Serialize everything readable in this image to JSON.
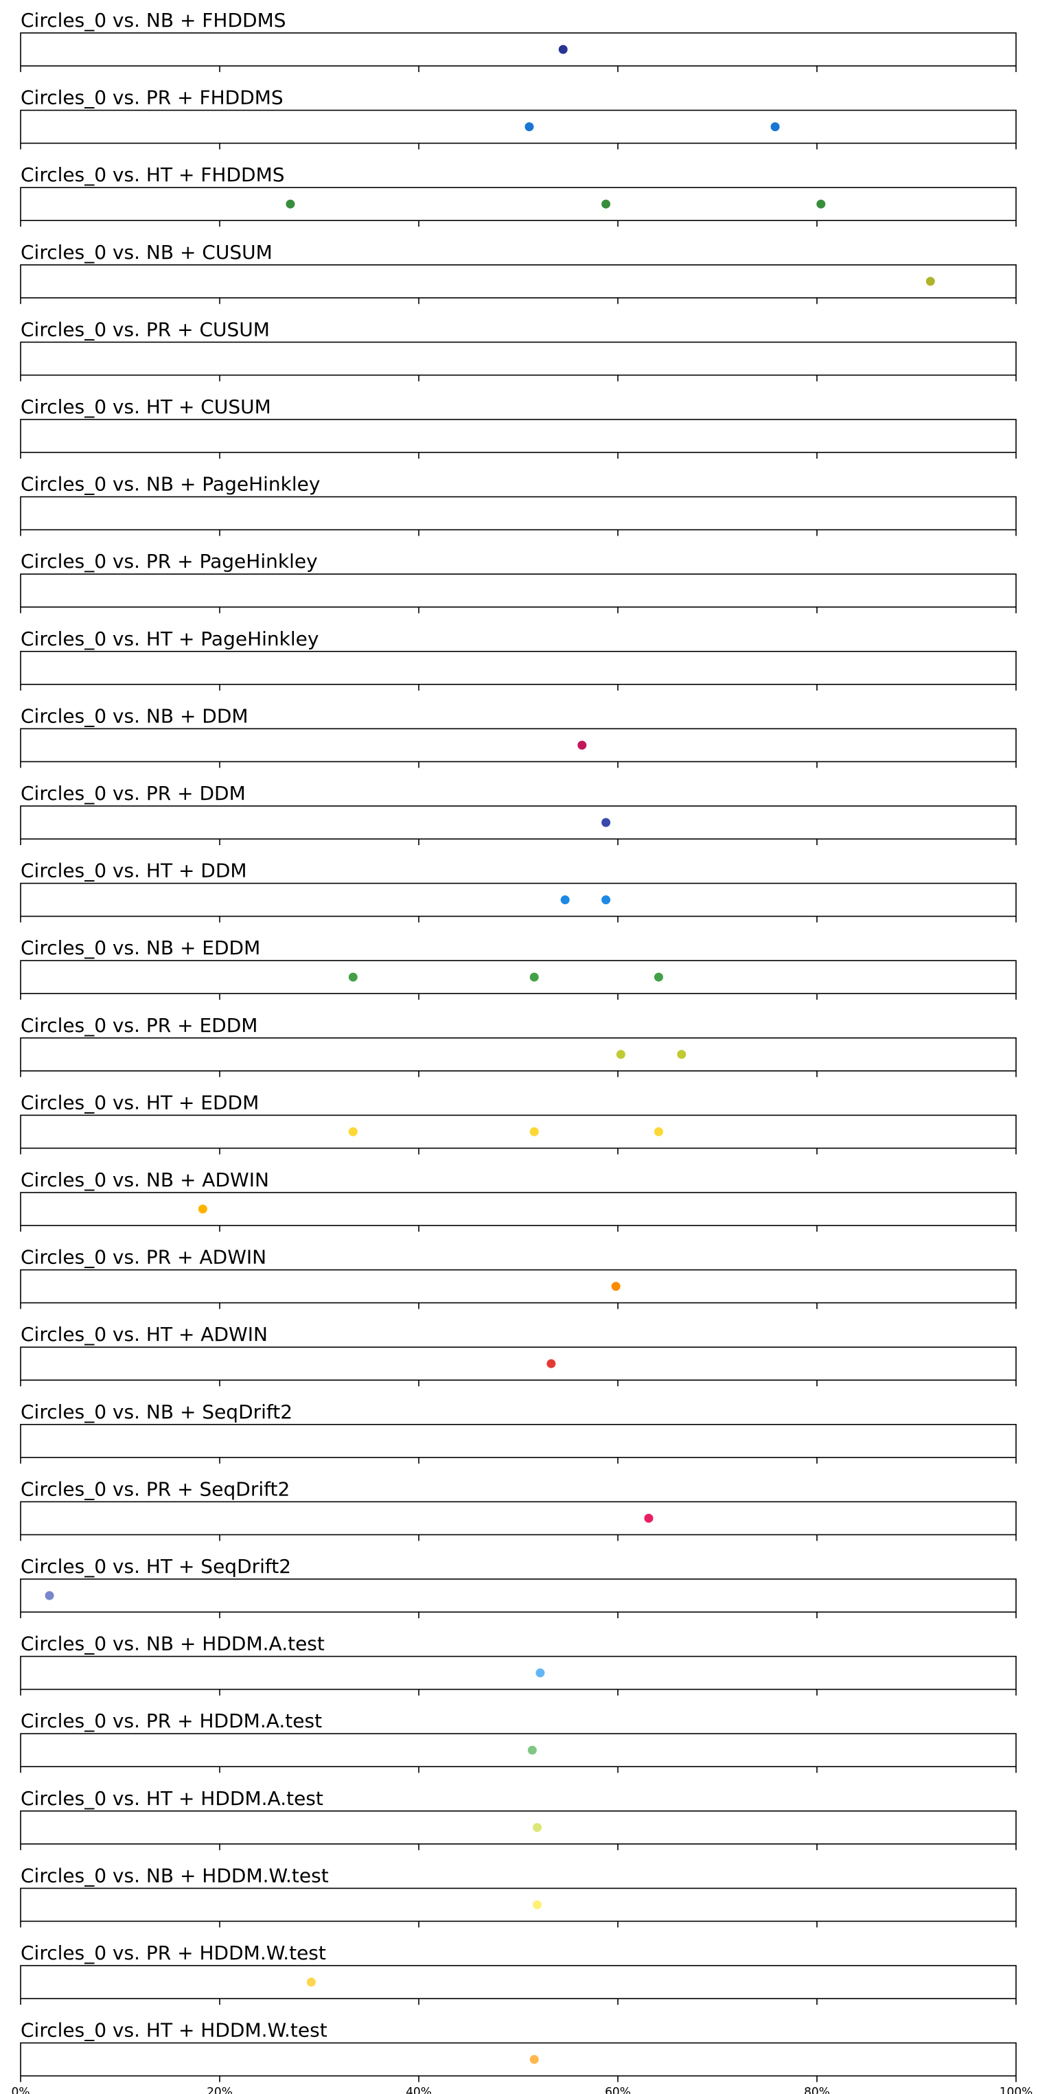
{
  "chart_data": {
    "type": "scatter",
    "x_axis": {
      "xlim": [
        0,
        100
      ],
      "ticks": [
        0,
        20,
        40,
        60,
        80,
        100
      ],
      "tick_labels": [
        "0%",
        "20%",
        "40%",
        "60%",
        "80%",
        "100%"
      ],
      "grid": false
    },
    "panels": [
      {
        "title": "Circles_0 vs. NB + FHDDMS",
        "color": "#283593",
        "points": [
          54.5
        ]
      },
      {
        "title": "Circles_0 vs. PR + FHDDMS",
        "color": "#1976d2",
        "points": [
          51.1,
          75.8
        ]
      },
      {
        "title": "Circles_0 vs. HT + FHDDMS",
        "color": "#388e3c",
        "points": [
          27.1,
          58.8,
          80.4
        ]
      },
      {
        "title": "Circles_0 vs. NB + CUSUM",
        "color": "#afb42b",
        "points": [
          91.4
        ]
      },
      {
        "title": "Circles_0 vs. PR + CUSUM",
        "color": "#000000",
        "points": []
      },
      {
        "title": "Circles_0 vs. HT + CUSUM",
        "color": "#000000",
        "points": []
      },
      {
        "title": "Circles_0 vs. NB + PageHinkley",
        "color": "#000000",
        "points": []
      },
      {
        "title": "Circles_0 vs. PR + PageHinkley",
        "color": "#000000",
        "points": []
      },
      {
        "title": "Circles_0 vs. HT + PageHinkley",
        "color": "#000000",
        "points": []
      },
      {
        "title": "Circles_0 vs. NB + DDM",
        "color": "#c2185b",
        "points": [
          56.4
        ]
      },
      {
        "title": "Circles_0 vs. PR + DDM",
        "color": "#3949ab",
        "points": [
          58.8
        ]
      },
      {
        "title": "Circles_0 vs. HT + DDM",
        "color": "#1e88e5",
        "points": [
          54.7,
          58.8
        ]
      },
      {
        "title": "Circles_0 vs. NB + EDDM",
        "color": "#43a047",
        "points": [
          33.4,
          51.6,
          64.1
        ]
      },
      {
        "title": "Circles_0 vs. PR + EDDM",
        "color": "#c0ca33",
        "points": [
          60.3,
          66.4
        ]
      },
      {
        "title": "Circles_0 vs. HT + EDDM",
        "color": "#fdd835",
        "points": [
          33.4,
          51.6,
          64.1
        ]
      },
      {
        "title": "Circles_0 vs. NB + ADWIN",
        "color": "#ffb300",
        "points": [
          18.3
        ]
      },
      {
        "title": "Circles_0 vs. PR + ADWIN",
        "color": "#fb8c00",
        "points": [
          59.8
        ]
      },
      {
        "title": "Circles_0 vs. HT + ADWIN",
        "color": "#e53935",
        "points": [
          53.3
        ]
      },
      {
        "title": "Circles_0 vs. NB + SeqDrift2",
        "color": "#000000",
        "points": []
      },
      {
        "title": "Circles_0 vs. PR + SeqDrift2",
        "color": "#e91e63",
        "points": [
          63.1
        ]
      },
      {
        "title": "Circles_0 vs. HT + SeqDrift2",
        "color": "#7986cb",
        "points": [
          2.9
        ]
      },
      {
        "title": "Circles_0 vs. NB + HDDM.A.test",
        "color": "#64b5f6",
        "points": [
          52.2
        ]
      },
      {
        "title": "Circles_0 vs. PR + HDDM.A.test",
        "color": "#81c784",
        "points": [
          51.4
        ]
      },
      {
        "title": "Circles_0 vs. HT + HDDM.A.test",
        "color": "#dce775",
        "points": [
          51.9
        ]
      },
      {
        "title": "Circles_0 vs. NB + HDDM.W.test",
        "color": "#fff176",
        "points": [
          51.9
        ]
      },
      {
        "title": "Circles_0 vs. PR + HDDM.W.test",
        "color": "#ffd54f",
        "points": [
          29.2
        ]
      },
      {
        "title": "Circles_0 vs. HT + HDDM.W.test",
        "color": "#ffb74d",
        "points": [
          51.6
        ]
      }
    ]
  }
}
